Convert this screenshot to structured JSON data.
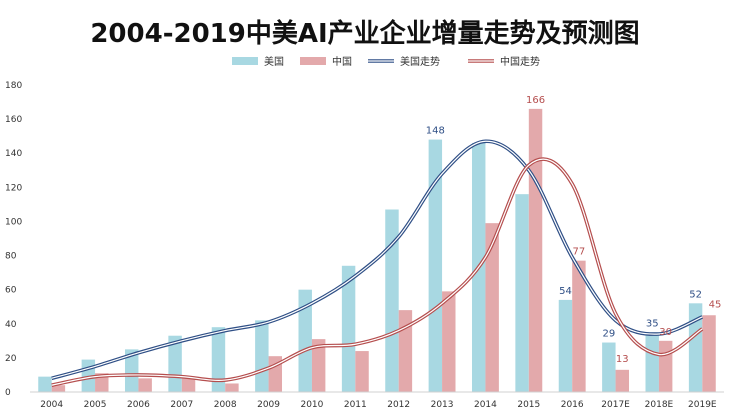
{
  "chart_data": {
    "type": "bar",
    "title": "2004-2019中美AI产业企业增量走势及预测图",
    "categories": [
      "2004",
      "2005",
      "2006",
      "2007",
      "2008",
      "2009",
      "2010",
      "2011",
      "2012",
      "2013",
      "2014",
      "2015",
      "2016",
      "2017E",
      "2018E",
      "2019E"
    ],
    "ylim": [
      0,
      180
    ],
    "yticks": [
      0,
      20,
      40,
      60,
      80,
      100,
      120,
      140,
      160,
      180
    ],
    "grid": false,
    "legend_position": "top",
    "series": [
      {
        "name": "美国",
        "kind": "bar",
        "color": "#a8d8e2",
        "values": [
          9,
          19,
          25,
          33,
          38,
          42,
          60,
          74,
          107,
          148,
          146,
          116,
          54,
          29,
          35,
          52
        ]
      },
      {
        "name": "中国",
        "kind": "bar",
        "color": "#e3a9ab",
        "values": [
          4,
          11,
          8,
          9,
          5,
          21,
          31,
          24,
          48,
          59,
          99,
          166,
          77,
          13,
          30,
          45
        ]
      },
      {
        "name": "美国走势",
        "kind": "line",
        "color": "#2f4f86",
        "values": [
          8,
          15,
          23,
          30,
          36,
          41,
          52,
          68,
          91,
          128,
          147,
          130,
          79,
          42,
          34,
          44
        ]
      },
      {
        "name": "中国走势",
        "kind": "line",
        "color": "#b54e4e",
        "values": [
          4,
          9,
          10,
          9,
          7,
          14,
          26,
          28,
          36,
          52,
          79,
          133,
          122,
          46,
          22,
          37
        ]
      }
    ],
    "data_labels": [
      {
        "series": 0,
        "index": 9,
        "text": "148"
      },
      {
        "series": 1,
        "index": 11,
        "text": "166"
      },
      {
        "series": 0,
        "index": 12,
        "text": "54"
      },
      {
        "series": 1,
        "index": 12,
        "text": "77"
      },
      {
        "series": 0,
        "index": 13,
        "text": "29"
      },
      {
        "series": 1,
        "index": 13,
        "text": "13"
      },
      {
        "series": 0,
        "index": 14,
        "text": "35"
      },
      {
        "series": 1,
        "index": 14,
        "text": "30"
      },
      {
        "series": 0,
        "index": 15,
        "text": "52"
      },
      {
        "series": 1,
        "index": 15,
        "text": "45"
      }
    ],
    "label_colors": {
      "us": "#2f4f86",
      "cn": "#b54e4e"
    }
  }
}
